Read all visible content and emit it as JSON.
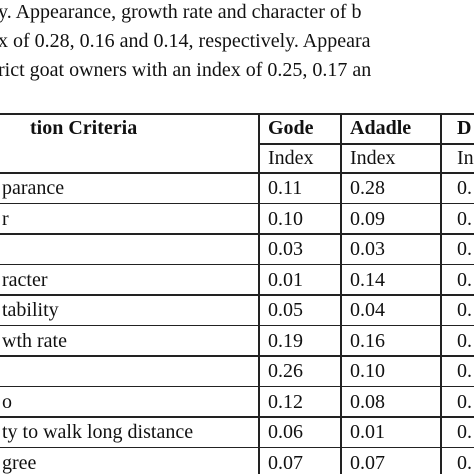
{
  "intro": [
    "y. Appearance, growth rate and character of b",
    "x of 0.28, 0.16 and 0.14, respectively. Appeara",
    "rict goat owners with an index of 0.25, 0.17 an"
  ],
  "table": {
    "headers": [
      "tion Criteria",
      "Gode",
      "Adadle",
      "D"
    ],
    "subheaders": [
      null,
      "Index",
      "Index",
      "In"
    ],
    "rows": [
      [
        "parance",
        "0.11",
        "0.28",
        "0."
      ],
      [
        "r",
        "0.10",
        "0.09",
        "0."
      ],
      [
        null,
        "0.03",
        "0.03",
        "0."
      ],
      [
        "racter",
        "0.01",
        "0.14",
        "0."
      ],
      [
        "tability",
        "0.05",
        "0.04",
        "0."
      ],
      [
        "wth rate",
        "0.19",
        "0.16",
        "0."
      ],
      [
        null,
        "0.26",
        "0.10",
        "0."
      ],
      [
        "o",
        "0.12",
        "0.08",
        "0."
      ],
      [
        "ty to walk long distance",
        "0.06",
        "0.01",
        "0."
      ],
      [
        "gree",
        "0.07",
        "0.07",
        "0."
      ]
    ]
  }
}
